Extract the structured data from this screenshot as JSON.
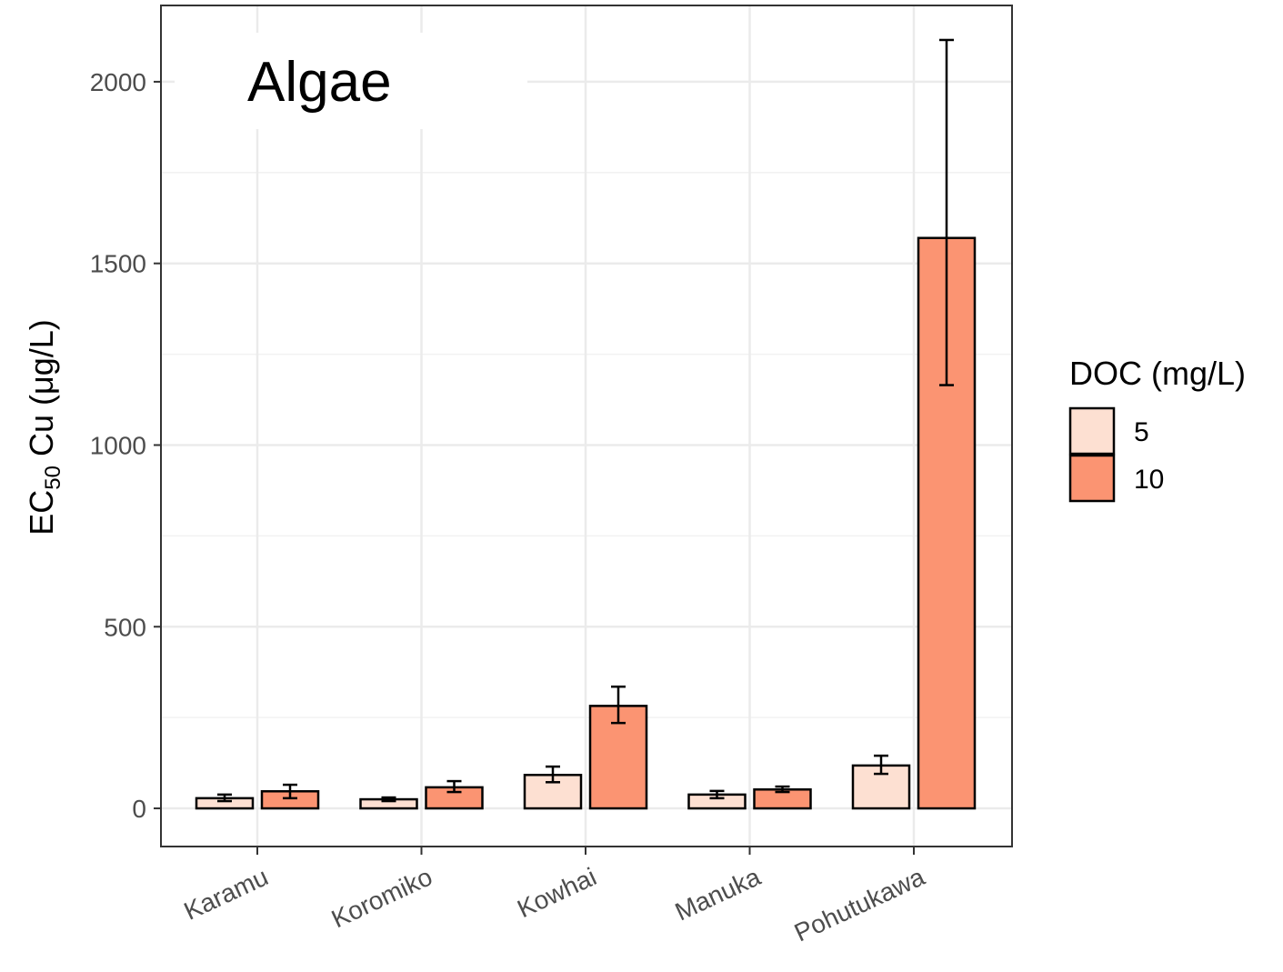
{
  "chart_data": {
    "type": "bar",
    "title": "Algae",
    "ylabel": {
      "main": "EC",
      "subscript": "50",
      "rest": " Cu (μg/L)"
    },
    "xlabel": "",
    "ylim": [
      -105,
      2210
    ],
    "yticks": [
      0,
      500,
      1000,
      1500,
      2000
    ],
    "ytick_labels": [
      "0",
      "500",
      "1000",
      "1500",
      "2000"
    ],
    "categories": [
      "Karamu",
      "Koromiko",
      "Kowhai",
      "Manuka",
      "Pohutukawa"
    ],
    "series": [
      {
        "name": "5",
        "color": "#fde0d2",
        "values": [
          28,
          25,
          92,
          38,
          118
        ],
        "err_low": [
          20,
          20,
          72,
          28,
          95
        ],
        "err_high": [
          38,
          30,
          115,
          48,
          145
        ]
      },
      {
        "name": "10",
        "color": "#fb9472",
        "values": [
          47,
          58,
          282,
          52,
          1570
        ],
        "err_low": [
          28,
          45,
          235,
          45,
          1165
        ],
        "err_high": [
          65,
          75,
          335,
          60,
          2115
        ]
      }
    ],
    "grid": true,
    "legend": {
      "title": "DOC (mg/L)",
      "placement": "right",
      "entries": [
        "5",
        "10"
      ]
    }
  }
}
